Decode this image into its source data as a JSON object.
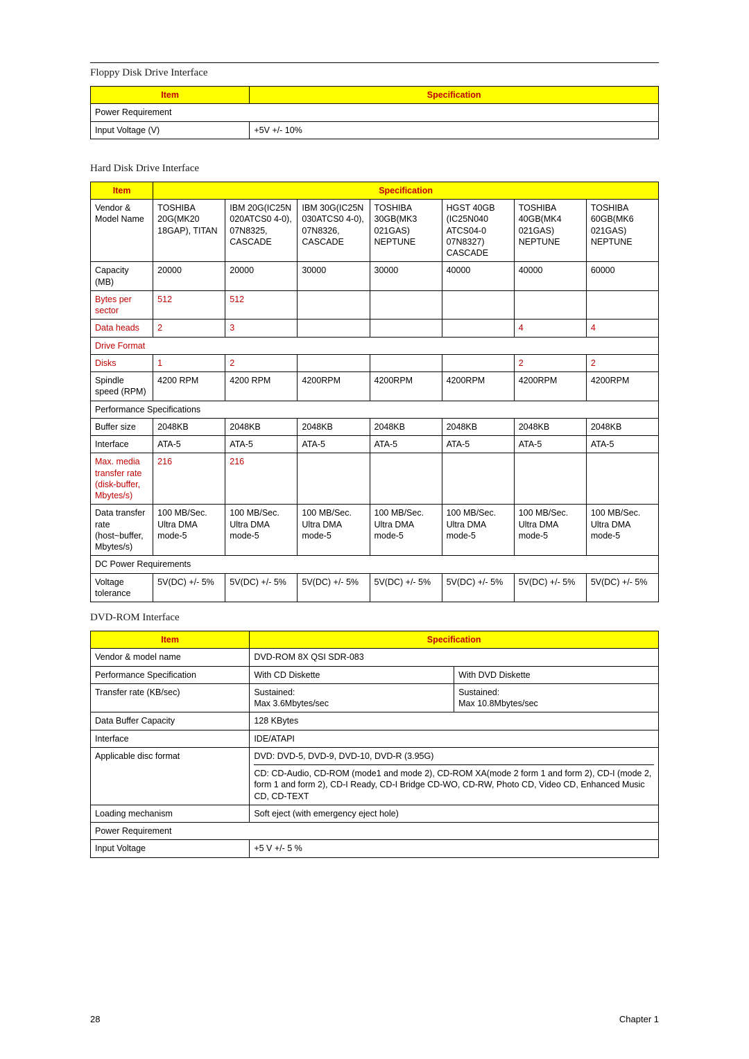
{
  "page": {
    "number": "28",
    "chapter": "Chapter 1"
  },
  "colors": {
    "header_bg": "#ffff00",
    "header_text": "#c00000",
    "red_text": "#c00000",
    "border": "#000000",
    "body_text": "#000000",
    "bg": "#ffffff"
  },
  "typography": {
    "body_font": "Arial",
    "title_font": "Times New Roman",
    "body_size_pt": 10,
    "title_size_pt": 12
  },
  "floppy": {
    "title": "Floppy Disk Drive Interface",
    "headers": {
      "item": "Item",
      "spec": "Specification"
    },
    "rows": [
      {
        "item": "Power Requirement",
        "span": true
      },
      {
        "item": "Input Voltage (V)",
        "spec": "+5V +/- 10%"
      }
    ]
  },
  "hdd": {
    "title": "Hard Disk Drive Interface",
    "headers": {
      "item": "Item",
      "spec": "Specification"
    },
    "rows": [
      {
        "item": "Vendor & Model Name",
        "c": [
          "TOSHIBA 20G(MK20 18GAP), TITAN",
          "IBM 20G(IC25N 020ATCS0 4-0), 07N8325, CASCADE",
          "IBM 30G(IC25N 030ATCS0 4-0), 07N8326, CASCADE",
          "TOSHIBA 30GB(MK3 021GAS) NEPTUNE",
          "HGST 40GB (IC25N040 ATCS04-0 07N8327) CASCADE",
          "TOSHIBA 40GB(MK4 021GAS) NEPTUNE",
          "TOSHIBA 60GB(MK6 021GAS) NEPTUNE"
        ]
      },
      {
        "item": "Capacity (MB)",
        "c": [
          "20000",
          "20000",
          "30000",
          "30000",
          "40000",
          "40000",
          "60000"
        ]
      },
      {
        "item": "Bytes per sector",
        "red": true,
        "c": [
          "512",
          "512",
          "",
          "",
          "",
          "",
          ""
        ],
        "red_vals": true
      },
      {
        "item": "Data heads",
        "red": true,
        "c": [
          "2",
          "3",
          "",
          "",
          "",
          "4",
          "4"
        ],
        "red_vals": true
      },
      {
        "item": "Drive Format",
        "red": true,
        "span": true
      },
      {
        "item": "Disks",
        "red": true,
        "c": [
          "1",
          "2",
          "",
          "",
          "",
          "2",
          "2"
        ],
        "red_vals": true
      },
      {
        "item": "Spindle speed (RPM)",
        "c": [
          "4200 RPM",
          "4200 RPM",
          "4200RPM",
          "4200RPM",
          "4200RPM",
          "4200RPM",
          "4200RPM"
        ]
      },
      {
        "item": "Performance Specifications",
        "span": true
      },
      {
        "item": "Buffer size",
        "c": [
          "2048KB",
          "2048KB",
          "2048KB",
          "2048KB",
          "2048KB",
          "2048KB",
          "2048KB"
        ]
      },
      {
        "item": "Interface",
        "c": [
          "ATA-5",
          "ATA-5",
          "ATA-5",
          "ATA-5",
          "ATA-5",
          "ATA-5",
          "ATA-5"
        ]
      },
      {
        "item": "Max. media transfer rate (disk-buffer, Mbytes/s)",
        "red": true,
        "c": [
          "216",
          "216",
          "",
          "",
          "",
          "",
          ""
        ],
        "red_vals": true
      },
      {
        "item": "Data transfer rate (host~buffer, Mbytes/s)",
        "c": [
          "100 MB/Sec.\nUltra DMA mode-5",
          "100 MB/Sec.\nUltra DMA mode-5",
          "100 MB/Sec.\nUltra DMA mode-5",
          "100 MB/Sec.\nUltra DMA mode-5",
          "100 MB/Sec.\nUltra DMA mode-5",
          "100 MB/Sec.\nUltra DMA mode-5",
          "100 MB/Sec.\nUltra DMA mode-5"
        ]
      },
      {
        "item": "DC Power Requirements",
        "span": true
      },
      {
        "item": "Voltage tolerance",
        "c": [
          "5V(DC) +/- 5%",
          "5V(DC) +/- 5%",
          "5V(DC) +/- 5%",
          "5V(DC) +/- 5%",
          "5V(DC) +/- 5%",
          "5V(DC) +/- 5%",
          "5V(DC) +/- 5%"
        ]
      }
    ]
  },
  "dvd": {
    "title": "DVD-ROM Interface",
    "headers": {
      "item": "Item",
      "spec": "Specification"
    },
    "rows": [
      {
        "item": "Vendor & model name",
        "spec": "DVD-ROM 8X QSI SDR-083",
        "colspan": 2
      },
      {
        "item": "Performance Specification",
        "c": [
          "With CD Diskette",
          "With DVD Diskette"
        ]
      },
      {
        "item": "Transfer rate (KB/sec)",
        "c": [
          "Sustained:\nMax 3.6Mbytes/sec",
          "Sustained:\nMax 10.8Mbytes/sec"
        ]
      },
      {
        "item": "Data Buffer Capacity",
        "spec": "128 KBytes",
        "colspan": 2
      },
      {
        "item": "Interface",
        "spec": "IDE/ATAPI",
        "colspan": 2
      },
      {
        "item": "Applicable disc format",
        "spec_lines": [
          "DVD: DVD-5, DVD-9, DVD-10, DVD-R (3.95G)",
          "CD:  CD-Audio, CD-ROM (mode1 and mode 2), CD-ROM XA(mode 2 form 1 and form 2), CD-I (mode 2, form 1 and form 2), CD-I Ready, CD-I Bridge CD-WO, CD-RW, Photo CD, Video CD, Enhanced Music CD, CD-TEXT"
        ],
        "colspan": 2
      },
      {
        "item": "Loading mechanism",
        "spec": "Soft eject (with emergency eject hole)",
        "colspan": 2
      },
      {
        "item": "Power Requirement",
        "span": true
      },
      {
        "item": " Input Voltage",
        "spec": "+5 V +/- 5 %",
        "colspan": 2
      }
    ]
  }
}
